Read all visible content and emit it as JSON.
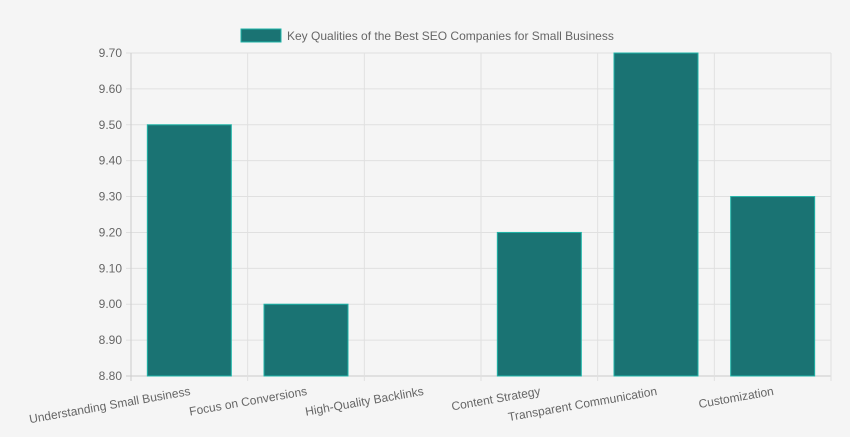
{
  "chart_data": {
    "type": "bar",
    "legend": {
      "label": "Key Qualities of the Best SEO Companies for Small Business",
      "position": "top",
      "color": "#1a7373"
    },
    "categories": [
      "Understanding Small Business",
      "Focus on Conversions",
      "High-Quality Backlinks",
      "Content Strategy",
      "Transparent Communication",
      "Customization"
    ],
    "values": [
      9.5,
      9.0,
      8.8,
      9.2,
      9.7,
      9.3
    ],
    "ylim": [
      8.8,
      9.7
    ],
    "yticks": [
      "9.70",
      "9.60",
      "9.50",
      "9.40",
      "9.30",
      "9.20",
      "9.10",
      "9.00",
      "8.90",
      "8.80"
    ],
    "grid": true,
    "colors": {
      "bar_fill": "#1a7373",
      "bar_border": "#1fb5a8",
      "grid": "#e0e0e0",
      "axis": "#cccccc",
      "text": "#666666"
    }
  }
}
